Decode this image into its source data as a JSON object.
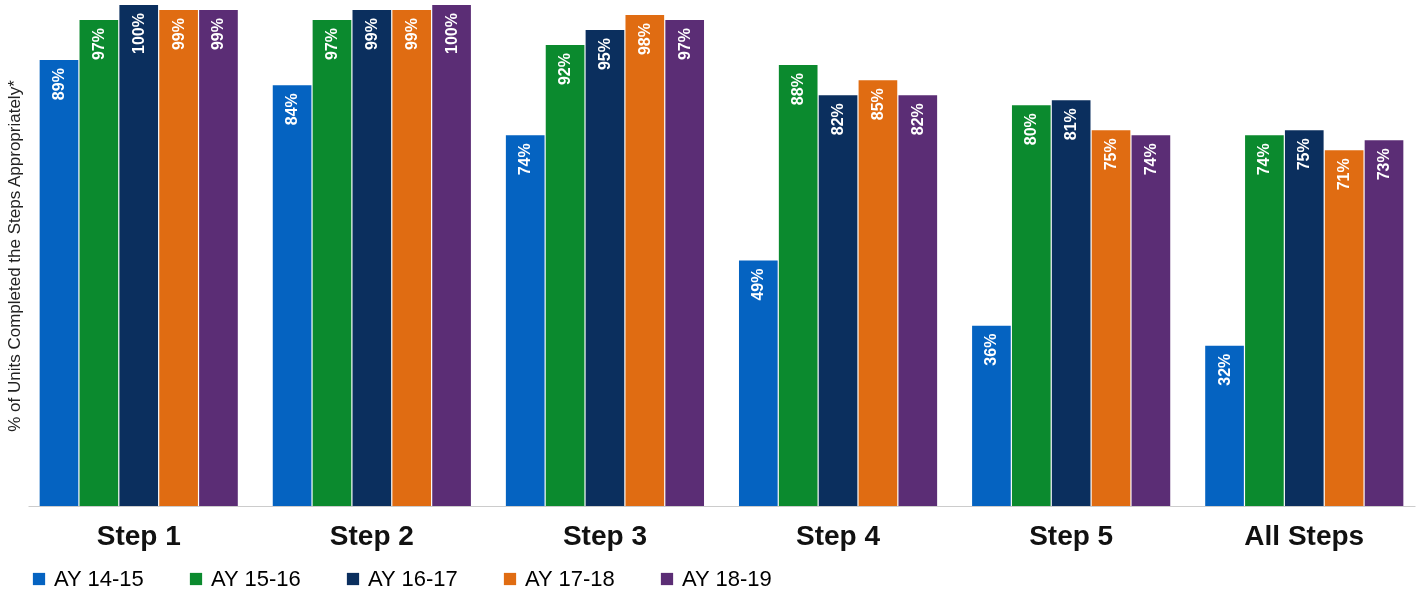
{
  "chart_data": {
    "type": "bar",
    "ylabel": "% of Units Completed the Steps Appropriately*",
    "categories": [
      "Step 1",
      "Step 2",
      "Step 3",
      "Step 4",
      "Step 5",
      "All Steps"
    ],
    "series": [
      {
        "name": "AY 14-15",
        "color": "#0563c1",
        "values": [
          89,
          84,
          74,
          49,
          36,
          32
        ],
        "value_labels": [
          "89%",
          "84%",
          "74%",
          "49%",
          "36%",
          "32%"
        ]
      },
      {
        "name": "AY 15-16",
        "color": "#0b8a2e",
        "values": [
          97,
          97,
          92,
          88,
          80,
          74
        ],
        "value_labels": [
          "97%",
          "97%",
          "92%",
          "88%",
          "80%",
          "74%"
        ]
      },
      {
        "name": "AY 16-17",
        "color": "#0b2f5e",
        "values": [
          100,
          99,
          95,
          82,
          81,
          75
        ],
        "value_labels": [
          "100%",
          "99%",
          "95%",
          "82%",
          "81%",
          "75%"
        ]
      },
      {
        "name": "AY 17-18",
        "color": "#e06c12",
        "values": [
          99,
          99,
          98,
          85,
          75,
          71
        ],
        "value_labels": [
          "99%",
          "99%",
          "98%",
          "85%",
          "75%",
          "71%"
        ]
      },
      {
        "name": "AY 18-19",
        "color": "#5b2d75",
        "values": [
          99,
          100,
          97,
          82,
          74,
          73
        ],
        "value_labels": [
          "99%",
          "100%",
          "97%",
          "82%",
          "74%",
          "73%"
        ]
      }
    ],
    "tick_labels": "x",
    "legend": "bottom"
  }
}
